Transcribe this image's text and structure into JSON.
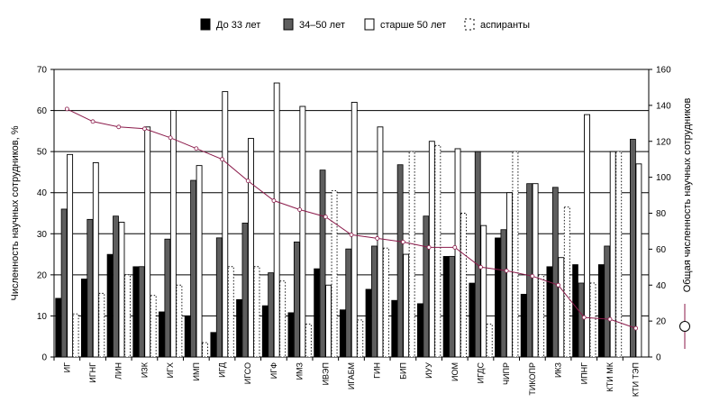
{
  "chart_data": {
    "type": "bar",
    "title": "",
    "ylabel": "Численность научных сотрудников, %",
    "y2label": "Общая численность научных сотрудников",
    "ylim": [
      0,
      70
    ],
    "y2lim": [
      0,
      160
    ],
    "yticks": [
      0,
      10,
      20,
      30,
      40,
      50,
      60,
      70
    ],
    "y2ticks": [
      0,
      20,
      40,
      60,
      80,
      100,
      120,
      140,
      160
    ],
    "grid": true,
    "legend_position": "top",
    "categories": [
      "ИГ",
      "ИГНГ",
      "ЛИН",
      "ИЗК",
      "ИГХ",
      "ИМП",
      "ИГД",
      "ИГСО",
      "ИГФ",
      "ИМЗ",
      "ИВЭП",
      "ИГАБМ",
      "ГИН",
      "БИП",
      "ИУУ",
      "ИОМ",
      "ИГДС",
      "ЧИПР",
      "ТИКОПР",
      "ИКЗ",
      "ИПНГ",
      "КТИ МК",
      "КТИ ТЭП"
    ],
    "series": [
      {
        "name": "До 33 лет",
        "style": "solid-black",
        "color": "#000000",
        "values": [
          14.3,
          19,
          25,
          22,
          11,
          10,
          6,
          14,
          12.5,
          10.8,
          21.5,
          11.5,
          16.5,
          13.8,
          13,
          24.5,
          18,
          29,
          15.3,
          22,
          22.5,
          22.5,
          0
        ]
      },
      {
        "name": "34–50 лет",
        "style": "solid-gray",
        "color": "#5e5e5e",
        "values": [
          36,
          33.5,
          34.3,
          22,
          28.7,
          43,
          29,
          32.6,
          20.5,
          28,
          45.5,
          26.3,
          27,
          46.8,
          34.3,
          24.5,
          50,
          31,
          42.2,
          41.3,
          18,
          27,
          53
        ]
      },
      {
        "name": "старше 50 лет",
        "style": "outline",
        "color": "#000000",
        "values": [
          49.3,
          47.3,
          32.8,
          56,
          60,
          46.6,
          64.6,
          53.2,
          66.7,
          61,
          17.5,
          62,
          56,
          25,
          52.5,
          50.7,
          32,
          40,
          42.2,
          24.2,
          59,
          50,
          47
        ]
      },
      {
        "name": "аспиранты",
        "style": "dotted",
        "color": "#000000",
        "values": [
          10.5,
          15.5,
          20,
          15,
          17.5,
          3.5,
          22,
          22,
          18.5,
          8,
          40.5,
          9,
          26.5,
          50,
          51.5,
          35,
          8,
          50,
          20,
          36.5,
          18,
          50,
          0
        ]
      }
    ],
    "total_series": {
      "name": "Общая численность научных сотрудников",
      "axis": "secondary",
      "color": "#8b1a4a",
      "values": [
        138,
        131,
        128,
        127,
        122,
        116,
        110,
        98,
        87,
        82,
        78,
        68,
        66,
        64,
        61,
        61,
        50,
        48,
        45,
        40,
        22,
        21,
        16
      ]
    }
  }
}
